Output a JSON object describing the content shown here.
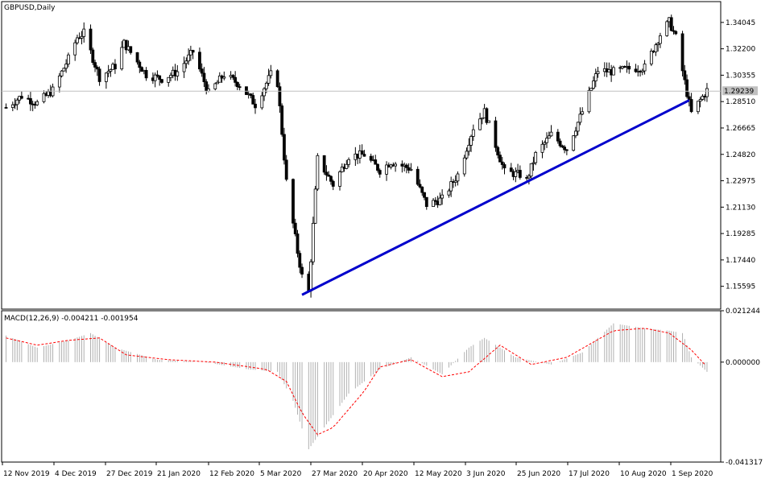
{
  "window": {
    "title": "GBPUSD,Daily"
  },
  "colors": {
    "background": "#ffffff",
    "frame": "#000000",
    "candle": "#000000",
    "trendline": "#0000cc",
    "price_line": "#c0c0c0",
    "macd_hist": "#b0b0b0",
    "macd_signal": "#ff0000"
  },
  "chart_data": [
    {
      "type": "candlestick",
      "title": "GBPUSD,Daily",
      "ylim": [
        1.14,
        1.355
      ],
      "y_ticks": [
        "1.34045",
        "1.32200",
        "1.30355",
        "1.28510",
        "1.26665",
        "1.24820",
        "1.22975",
        "1.21130",
        "1.19285",
        "1.17440",
        "1.15595"
      ],
      "current_price": "1.29239",
      "x_ticks": [
        "12 Nov 2019",
        "4 Dec 2019",
        "27 Dec 2019",
        "21 Jan 2020",
        "12 Feb 2020",
        "5 Mar 2020",
        "27 Mar 2020",
        "20 Apr 2020",
        "12 May 2020",
        "3 Jun 2020",
        "25 Jun 2020",
        "17 Jul 2020",
        "10 Aug 2020",
        "1 Sep 2020"
      ],
      "close_path": [
        [
          "2019-11-08",
          1.281
        ],
        [
          "2019-11-15",
          1.289
        ],
        [
          "2019-11-22",
          1.284
        ],
        [
          "2019-11-29",
          1.293
        ],
        [
          "2019-12-06",
          1.315
        ],
        [
          "2019-12-10",
          1.33
        ],
        [
          "2019-12-13",
          1.333
        ],
        [
          "2019-12-20",
          1.302
        ],
        [
          "2019-12-27",
          1.31
        ],
        [
          "2019-12-31",
          1.326
        ],
        [
          "2020-01-10",
          1.304
        ],
        [
          "2020-01-17",
          1.301
        ],
        [
          "2020-01-24",
          1.306
        ],
        [
          "2020-01-31",
          1.32
        ],
        [
          "2020-02-07",
          1.291
        ],
        [
          "2020-02-14",
          1.304
        ],
        [
          "2020-02-21",
          1.297
        ],
        [
          "2020-02-28",
          1.283
        ],
        [
          "2020-03-06",
          1.304
        ],
        [
          "2020-03-09",
          1.298
        ],
        [
          "2020-03-13",
          1.229
        ],
        [
          "2020-03-18",
          1.18
        ],
        [
          "2020-03-20",
          1.163
        ],
        [
          "2020-03-23",
          1.152
        ],
        [
          "2020-03-27",
          1.245
        ],
        [
          "2020-04-03",
          1.227
        ],
        [
          "2020-04-10",
          1.247
        ],
        [
          "2020-04-17",
          1.248
        ],
        [
          "2020-04-24",
          1.237
        ],
        [
          "2020-04-29",
          1.243
        ],
        [
          "2020-05-08",
          1.238
        ],
        [
          "2020-05-15",
          1.213
        ],
        [
          "2020-05-22",
          1.217
        ],
        [
          "2020-05-29",
          1.234
        ],
        [
          "2020-06-05",
          1.267
        ],
        [
          "2020-06-10",
          1.278
        ],
        [
          "2020-06-19",
          1.236
        ],
        [
          "2020-06-26",
          1.234
        ],
        [
          "2020-06-29",
          1.23
        ],
        [
          "2020-07-03",
          1.248
        ],
        [
          "2020-07-10",
          1.262
        ],
        [
          "2020-07-17",
          1.252
        ],
        [
          "2020-07-24",
          1.278
        ],
        [
          "2020-07-31",
          1.307
        ],
        [
          "2020-08-07",
          1.306
        ],
        [
          "2020-08-14",
          1.308
        ],
        [
          "2020-08-21",
          1.309
        ],
        [
          "2020-08-28",
          1.332
        ],
        [
          "2020-09-01",
          1.341
        ],
        [
          "2020-09-04",
          1.33
        ],
        [
          "2020-09-09",
          1.291
        ],
        [
          "2020-09-11",
          1.277
        ],
        [
          "2020-09-18",
          1.293
        ]
      ],
      "trendline": {
        "start": [
          "2020-03-20",
          1.15
        ],
        "end": [
          "2020-09-10",
          1.286
        ],
        "color": "#0000cc"
      }
    },
    {
      "type": "bar",
      "title": "MACD(12,26,9) -0.004211 -0.001954",
      "indicator": "MACD(12,26,9)",
      "ylim": [
        -0.04131,
        0.02124
      ],
      "y_ticks": [
        "0.021244",
        "0.000000",
        "-0.041317"
      ],
      "histogram_path": [
        [
          "2019-11-08",
          0.011
        ],
        [
          "2019-11-22",
          0.006
        ],
        [
          "2019-12-06",
          0.009
        ],
        [
          "2019-12-16",
          0.012
        ],
        [
          "2019-12-27",
          0.006
        ],
        [
          "2020-01-15",
          0.001
        ],
        [
          "2020-02-05",
          0.0
        ],
        [
          "2020-02-25",
          -0.003
        ],
        [
          "2020-03-09",
          -0.004
        ],
        [
          "2020-03-16",
          -0.016
        ],
        [
          "2020-03-23",
          -0.036
        ],
        [
          "2020-03-30",
          -0.027
        ],
        [
          "2020-04-10",
          -0.013
        ],
        [
          "2020-04-24",
          -0.003
        ],
        [
          "2020-05-08",
          0.002
        ],
        [
          "2020-05-22",
          -0.005
        ],
        [
          "2020-06-03",
          0.006
        ],
        [
          "2020-06-10",
          0.01
        ],
        [
          "2020-06-24",
          0.002
        ],
        [
          "2020-07-10",
          -0.001
        ],
        [
          "2020-07-24",
          0.004
        ],
        [
          "2020-08-07",
          0.016
        ],
        [
          "2020-08-21",
          0.014
        ],
        [
          "2020-09-01",
          0.013
        ],
        [
          "2020-09-07",
          0.012
        ],
        [
          "2020-09-11",
          0.002
        ],
        [
          "2020-09-18",
          -0.004
        ]
      ],
      "signal_path": [
        [
          "2019-11-08",
          0.01
        ],
        [
          "2019-11-22",
          0.007
        ],
        [
          "2019-12-06",
          0.009
        ],
        [
          "2019-12-20",
          0.01
        ],
        [
          "2020-01-01",
          0.003
        ],
        [
          "2020-01-20",
          0.001
        ],
        [
          "2020-02-10",
          0.0
        ],
        [
          "2020-03-04",
          -0.003
        ],
        [
          "2020-03-13",
          -0.008
        ],
        [
          "2020-03-20",
          -0.021
        ],
        [
          "2020-03-27",
          -0.03
        ],
        [
          "2020-04-03",
          -0.027
        ],
        [
          "2020-04-17",
          -0.012
        ],
        [
          "2020-04-24",
          -0.002
        ],
        [
          "2020-05-08",
          0.001
        ],
        [
          "2020-05-22",
          -0.006
        ],
        [
          "2020-06-03",
          -0.004
        ],
        [
          "2020-06-17",
          0.007
        ],
        [
          "2020-07-01",
          -0.001
        ],
        [
          "2020-07-17",
          0.002
        ],
        [
          "2020-08-07",
          0.013
        ],
        [
          "2020-08-21",
          0.014
        ],
        [
          "2020-09-01",
          0.012
        ],
        [
          "2020-09-11",
          0.005
        ],
        [
          "2020-09-18",
          -0.002
        ]
      ]
    }
  ]
}
